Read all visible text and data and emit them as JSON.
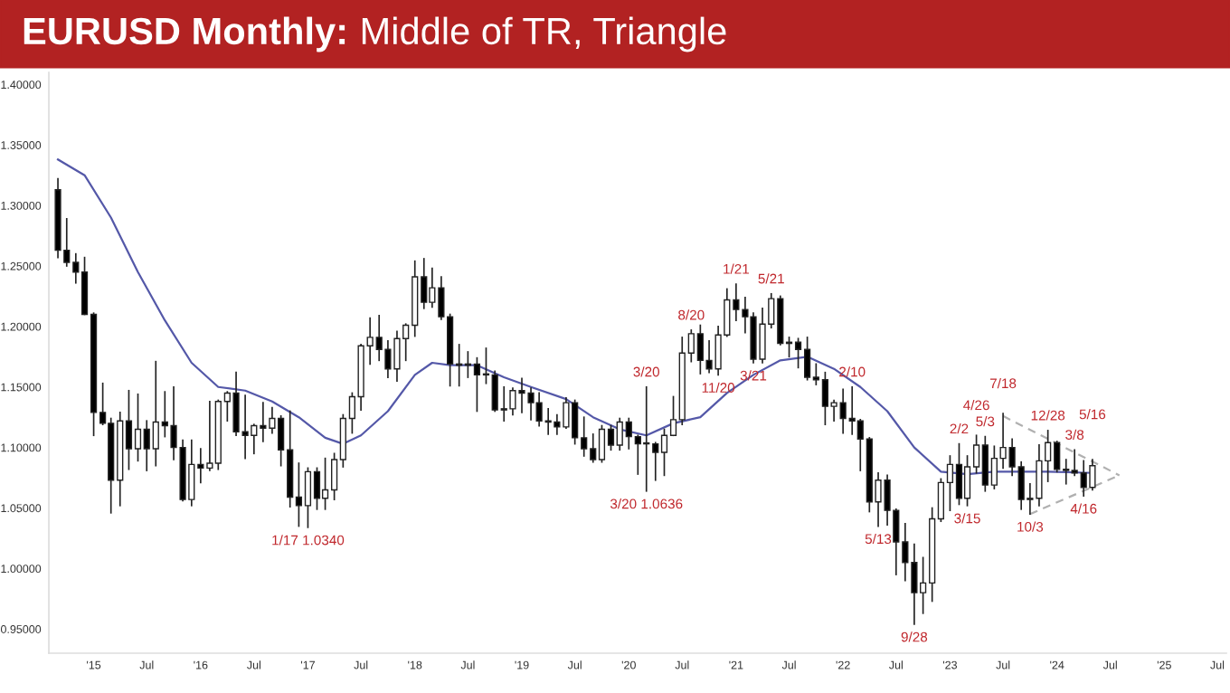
{
  "chart_data": {
    "type": "candlestick",
    "title": "EURUSD Monthly:",
    "subtitle": "Middle of TR, Triangle",
    "x": [
      "2014-09",
      "2014-10",
      "2014-11",
      "2014-12",
      "2015-01",
      "2015-02",
      "2015-03",
      "2015-04",
      "2015-05",
      "2015-06",
      "2015-07",
      "2015-08",
      "2015-09",
      "2015-10",
      "2015-11",
      "2015-12",
      "2016-01",
      "2016-02",
      "2016-03",
      "2016-04",
      "2016-05",
      "2016-06",
      "2016-07",
      "2016-08",
      "2016-09",
      "2016-10",
      "2016-11",
      "2016-12",
      "2017-01",
      "2017-02",
      "2017-03",
      "2017-04",
      "2017-05",
      "2017-06",
      "2017-07",
      "2017-08",
      "2017-09",
      "2017-10",
      "2017-11",
      "2017-12",
      "2018-01",
      "2018-02",
      "2018-03",
      "2018-04",
      "2018-05",
      "2018-06",
      "2018-07",
      "2018-08",
      "2018-09",
      "2018-10",
      "2018-11",
      "2018-12",
      "2019-01",
      "2019-02",
      "2019-03",
      "2019-04",
      "2019-05",
      "2019-06",
      "2019-07",
      "2019-08",
      "2019-09",
      "2019-10",
      "2019-11",
      "2019-12",
      "2020-01",
      "2020-02",
      "2020-03",
      "2020-04",
      "2020-05",
      "2020-06",
      "2020-07",
      "2020-08",
      "2020-09",
      "2020-10",
      "2020-11",
      "2020-12",
      "2021-01",
      "2021-02",
      "2021-03",
      "2021-04",
      "2021-05",
      "2021-06",
      "2021-07",
      "2021-08",
      "2021-09",
      "2021-10",
      "2021-11",
      "2021-12",
      "2022-01",
      "2022-02",
      "2022-03",
      "2022-04",
      "2022-05",
      "2022-06",
      "2022-07",
      "2022-08",
      "2022-09",
      "2022-10",
      "2022-11",
      "2022-12",
      "2023-01",
      "2023-02",
      "2023-03",
      "2023-04",
      "2023-05",
      "2023-06",
      "2023-07",
      "2023-08",
      "2023-09",
      "2023-10",
      "2023-11",
      "2023-12",
      "2024-01",
      "2024-02",
      "2024-03",
      "2024-04",
      "2024-05"
    ],
    "ohlc": [
      [
        1.313,
        1.322,
        1.257,
        1.263
      ],
      [
        1.263,
        1.289,
        1.25,
        1.253
      ],
      [
        1.253,
        1.26,
        1.236,
        1.245
      ],
      [
        1.245,
        1.257,
        1.21,
        1.21
      ],
      [
        1.21,
        1.211,
        1.11,
        1.129
      ],
      [
        1.129,
        1.153,
        1.119,
        1.12
      ],
      [
        1.12,
        1.124,
        1.046,
        1.073
      ],
      [
        1.073,
        1.129,
        1.052,
        1.122
      ],
      [
        1.122,
        1.147,
        1.082,
        1.099
      ],
      [
        1.099,
        1.144,
        1.089,
        1.115
      ],
      [
        1.115,
        1.122,
        1.081,
        1.099
      ],
      [
        1.099,
        1.171,
        1.085,
        1.121
      ],
      [
        1.121,
        1.146,
        1.109,
        1.118
      ],
      [
        1.118,
        1.15,
        1.09,
        1.1
      ],
      [
        1.1,
        1.106,
        1.056,
        1.057
      ],
      [
        1.057,
        1.106,
        1.052,
        1.086
      ],
      [
        1.086,
        1.099,
        1.071,
        1.083
      ],
      [
        1.083,
        1.138,
        1.081,
        1.087
      ],
      [
        1.087,
        1.139,
        1.082,
        1.138
      ],
      [
        1.138,
        1.146,
        1.122,
        1.145
      ],
      [
        1.145,
        1.162,
        1.11,
        1.113
      ],
      [
        1.113,
        1.143,
        1.091,
        1.11
      ],
      [
        1.11,
        1.119,
        1.095,
        1.118
      ],
      [
        1.118,
        1.137,
        1.105,
        1.116
      ],
      [
        1.116,
        1.133,
        1.112,
        1.124
      ],
      [
        1.124,
        1.126,
        1.085,
        1.098
      ],
      [
        1.098,
        1.13,
        1.051,
        1.059
      ],
      [
        1.059,
        1.087,
        1.035,
        1.052
      ],
      [
        1.052,
        1.083,
        1.034,
        1.08
      ],
      [
        1.08,
        1.083,
        1.049,
        1.058
      ],
      [
        1.058,
        1.091,
        1.049,
        1.065
      ],
      [
        1.065,
        1.095,
        1.057,
        1.09
      ],
      [
        1.09,
        1.127,
        1.084,
        1.124
      ],
      [
        1.124,
        1.145,
        1.112,
        1.142
      ],
      [
        1.142,
        1.185,
        1.131,
        1.184
      ],
      [
        1.184,
        1.207,
        1.169,
        1.191
      ],
      [
        1.191,
        1.209,
        1.172,
        1.181
      ],
      [
        1.181,
        1.188,
        1.158,
        1.165
      ],
      [
        1.165,
        1.196,
        1.155,
        1.19
      ],
      [
        1.19,
        1.202,
        1.172,
        1.201
      ],
      [
        1.201,
        1.254,
        1.192,
        1.241
      ],
      [
        1.241,
        1.256,
        1.215,
        1.22
      ],
      [
        1.22,
        1.248,
        1.216,
        1.232
      ],
      [
        1.232,
        1.241,
        1.206,
        1.208
      ],
      [
        1.208,
        1.21,
        1.151,
        1.169
      ],
      [
        1.169,
        1.185,
        1.151,
        1.168
      ],
      [
        1.168,
        1.179,
        1.158,
        1.169
      ],
      [
        1.169,
        1.174,
        1.13,
        1.16
      ],
      [
        1.16,
        1.182,
        1.153,
        1.16
      ],
      [
        1.16,
        1.163,
        1.13,
        1.131
      ],
      [
        1.131,
        1.15,
        1.122,
        1.132
      ],
      [
        1.132,
        1.149,
        1.127,
        1.147
      ],
      [
        1.147,
        1.157,
        1.129,
        1.145
      ],
      [
        1.145,
        1.149,
        1.123,
        1.137
      ],
      [
        1.137,
        1.145,
        1.118,
        1.122
      ],
      [
        1.122,
        1.132,
        1.111,
        1.121
      ],
      [
        1.121,
        1.127,
        1.111,
        1.117
      ],
      [
        1.117,
        1.141,
        1.116,
        1.137
      ],
      [
        1.137,
        1.139,
        1.103,
        1.108
      ],
      [
        1.108,
        1.125,
        1.093,
        1.099
      ],
      [
        1.099,
        1.111,
        1.088,
        1.09
      ],
      [
        1.09,
        1.118,
        1.088,
        1.115
      ],
      [
        1.115,
        1.118,
        1.098,
        1.102
      ],
      [
        1.102,
        1.124,
        1.098,
        1.121
      ],
      [
        1.121,
        1.124,
        1.099,
        1.109
      ],
      [
        1.109,
        1.11,
        1.078,
        1.103
      ],
      [
        1.103,
        1.15,
        1.064,
        1.103
      ],
      [
        1.103,
        1.104,
        1.073,
        1.096
      ],
      [
        1.096,
        1.115,
        1.077,
        1.11
      ],
      [
        1.11,
        1.142,
        1.11,
        1.123
      ],
      [
        1.123,
        1.191,
        1.119,
        1.178
      ],
      [
        1.178,
        1.197,
        1.171,
        1.194
      ],
      [
        1.194,
        1.201,
        1.161,
        1.172
      ],
      [
        1.172,
        1.188,
        1.162,
        1.165
      ],
      [
        1.165,
        1.2,
        1.16,
        1.193
      ],
      [
        1.193,
        1.231,
        1.192,
        1.222
      ],
      [
        1.222,
        1.235,
        1.205,
        1.214
      ],
      [
        1.214,
        1.224,
        1.195,
        1.208
      ],
      [
        1.208,
        1.211,
        1.17,
        1.173
      ],
      [
        1.173,
        1.215,
        1.17,
        1.202
      ],
      [
        1.202,
        1.227,
        1.199,
        1.223
      ],
      [
        1.223,
        1.225,
        1.185,
        1.186
      ],
      [
        1.186,
        1.191,
        1.175,
        1.187
      ],
      [
        1.187,
        1.19,
        1.166,
        1.181
      ],
      [
        1.181,
        1.191,
        1.156,
        1.158
      ],
      [
        1.158,
        1.169,
        1.152,
        1.156
      ],
      [
        1.156,
        1.162,
        1.119,
        1.134
      ],
      [
        1.134,
        1.139,
        1.122,
        1.137
      ],
      [
        1.137,
        1.148,
        1.112,
        1.124
      ],
      [
        1.124,
        1.15,
        1.111,
        1.122
      ],
      [
        1.122,
        1.123,
        1.081,
        1.107
      ],
      [
        1.107,
        1.108,
        1.047,
        1.055
      ],
      [
        1.055,
        1.079,
        1.035,
        1.073
      ],
      [
        1.073,
        1.077,
        1.036,
        1.048
      ],
      [
        1.048,
        1.049,
        0.995,
        1.022
      ],
      [
        1.022,
        1.037,
        0.99,
        1.005
      ],
      [
        1.005,
        1.02,
        0.954,
        0.98
      ],
      [
        0.98,
        1.009,
        0.963,
        0.988
      ],
      [
        0.988,
        1.05,
        0.973,
        1.041
      ],
      [
        1.041,
        1.074,
        1.039,
        1.071
      ],
      [
        1.071,
        1.093,
        1.048,
        1.086
      ],
      [
        1.086,
        1.103,
        1.053,
        1.058
      ],
      [
        1.058,
        1.093,
        1.052,
        1.084
      ],
      [
        1.084,
        1.11,
        1.079,
        1.102
      ],
      [
        1.102,
        1.109,
        1.064,
        1.069
      ],
      [
        1.069,
        1.101,
        1.066,
        1.091
      ],
      [
        1.091,
        1.128,
        1.083,
        1.1
      ],
      [
        1.1,
        1.107,
        1.077,
        1.084
      ],
      [
        1.084,
        1.088,
        1.049,
        1.057
      ],
      [
        1.057,
        1.07,
        1.045,
        1.058
      ],
      [
        1.058,
        1.102,
        1.052,
        1.089
      ],
      [
        1.089,
        1.114,
        1.072,
        1.104
      ],
      [
        1.104,
        1.105,
        1.08,
        1.082
      ],
      [
        1.082,
        1.09,
        1.07,
        1.081
      ],
      [
        1.081,
        1.098,
        1.077,
        1.079
      ],
      [
        1.079,
        1.089,
        1.06,
        1.067
      ],
      [
        1.067,
        1.09,
        1.065,
        1.085
      ]
    ],
    "series": [
      {
        "type": "line",
        "color": "#5458a8",
        "line_style": "solid",
        "x": [
          "2014-09",
          "2014-12",
          "2015-03",
          "2015-06",
          "2015-09",
          "2015-12",
          "2016-03",
          "2016-06",
          "2016-09",
          "2016-12",
          "2017-03",
          "2017-05",
          "2017-07",
          "2017-10",
          "2018-01",
          "2018-03",
          "2018-05",
          "2018-08",
          "2018-11",
          "2019-02",
          "2019-06",
          "2019-09",
          "2019-12",
          "2020-03",
          "2020-06",
          "2020-09",
          "2020-12",
          "2021-03",
          "2021-06",
          "2021-09",
          "2021-12",
          "2022-03",
          "2022-06",
          "2022-09",
          "2022-12",
          "2023-03",
          "2023-06",
          "2023-09",
          "2023-12",
          "2024-05"
        ],
        "values": [
          1.338,
          1.325,
          1.29,
          1.245,
          1.205,
          1.17,
          1.15,
          1.147,
          1.138,
          1.125,
          1.108,
          1.103,
          1.11,
          1.13,
          1.16,
          1.17,
          1.168,
          1.168,
          1.158,
          1.15,
          1.14,
          1.125,
          1.115,
          1.11,
          1.12,
          1.125,
          1.145,
          1.16,
          1.172,
          1.175,
          1.165,
          1.15,
          1.13,
          1.1,
          1.08,
          1.078,
          1.08,
          1.08,
          1.08,
          1.079
        ]
      },
      {
        "type": "line",
        "color": "#b0b0b0",
        "line_style": "dashed",
        "x": [
          "2023-07",
          "2024-08"
        ],
        "values": [
          1.126,
          1.077
        ]
      },
      {
        "type": "line",
        "color": "#b0b0b0",
        "line_style": "dashed",
        "x": [
          "2023-10",
          "2024-08"
        ],
        "values": [
          1.045,
          1.077
        ]
      }
    ],
    "annotations": [
      {
        "text": "1/17 1.0340",
        "x": "2017-01",
        "y": 1.034
      },
      {
        "text": "3/20",
        "x": "2020-03",
        "y": 1.15
      },
      {
        "text": "3/20 1.0636",
        "x": "2020-03",
        "y": 1.064
      },
      {
        "text": "8/20",
        "x": "2020-08",
        "y": 1.197
      },
      {
        "text": "11/20",
        "x": "2020-11",
        "y": 1.16
      },
      {
        "text": "1/21",
        "x": "2021-01",
        "y": 1.235
      },
      {
        "text": "3/21",
        "x": "2021-03",
        "y": 1.17
      },
      {
        "text": "5/21",
        "x": "2021-05",
        "y": 1.227
      },
      {
        "text": "2/10",
        "x": "2022-02",
        "y": 1.15
      },
      {
        "text": "5/13",
        "x": "2022-05",
        "y": 1.035
      },
      {
        "text": "9/28",
        "x": "2022-09",
        "y": 0.954
      },
      {
        "text": "2/2",
        "x": "2023-02",
        "y": 1.103
      },
      {
        "text": "3/15",
        "x": "2023-03",
        "y": 1.052
      },
      {
        "text": "4/26",
        "x": "2023-04",
        "y": 1.11
      },
      {
        "text": "5/3",
        "x": "2023-05",
        "y": 1.109
      },
      {
        "text": "7/18",
        "x": "2023-07",
        "y": 1.128
      },
      {
        "text": "10/3",
        "x": "2023-10",
        "y": 1.045
      },
      {
        "text": "12/28",
        "x": "2023-12",
        "y": 1.114
      },
      {
        "text": "3/8",
        "x": "2024-03",
        "y": 1.098
      },
      {
        "text": "4/16",
        "x": "2024-04",
        "y": 1.06
      },
      {
        "text": "5/16",
        "x": "2024-05",
        "y": 1.09
      }
    ],
    "xlim": [
      "2014-08",
      "2025-08"
    ],
    "xticks": [
      {
        "value": "2015-01",
        "label": "'15"
      },
      {
        "value": "2015-07",
        "label": "Jul"
      },
      {
        "value": "2016-01",
        "label": "'16"
      },
      {
        "value": "2016-07",
        "label": "Jul"
      },
      {
        "value": "2017-01",
        "label": "'17"
      },
      {
        "value": "2017-07",
        "label": "Jul"
      },
      {
        "value": "2018-01",
        "label": "'18"
      },
      {
        "value": "2018-07",
        "label": "Jul"
      },
      {
        "value": "2019-01",
        "label": "'19"
      },
      {
        "value": "2019-07",
        "label": "Jul"
      },
      {
        "value": "2020-01",
        "label": "'20"
      },
      {
        "value": "2020-07",
        "label": "Jul"
      },
      {
        "value": "2021-01",
        "label": "'21"
      },
      {
        "value": "2021-07",
        "label": "Jul"
      },
      {
        "value": "2022-01",
        "label": "'22"
      },
      {
        "value": "2022-07",
        "label": "Jul"
      },
      {
        "value": "2023-01",
        "label": "'23"
      },
      {
        "value": "2023-07",
        "label": "Jul"
      },
      {
        "value": "2024-01",
        "label": "'24"
      },
      {
        "value": "2024-07",
        "label": "Jul"
      },
      {
        "value": "2025-01",
        "label": "'25"
      },
      {
        "value": "2025-07",
        "label": "Jul"
      }
    ],
    "ylim": [
      0.93,
      1.41
    ],
    "yticks": [
      {
        "value": 0.95,
        "label": "0.95000"
      },
      {
        "value": 1.0,
        "label": "1.00000"
      },
      {
        "value": 1.05,
        "label": "1.05000"
      },
      {
        "value": 1.1,
        "label": "1.10000"
      },
      {
        "value": 1.15,
        "label": "1.15000"
      },
      {
        "value": 1.2,
        "label": "1.20000"
      },
      {
        "value": 1.25,
        "label": "1.25000"
      },
      {
        "value": 1.3,
        "label": "1.30000"
      },
      {
        "value": 1.35,
        "label": "1.35000"
      },
      {
        "value": 1.4,
        "label": "1.40000"
      }
    ]
  }
}
